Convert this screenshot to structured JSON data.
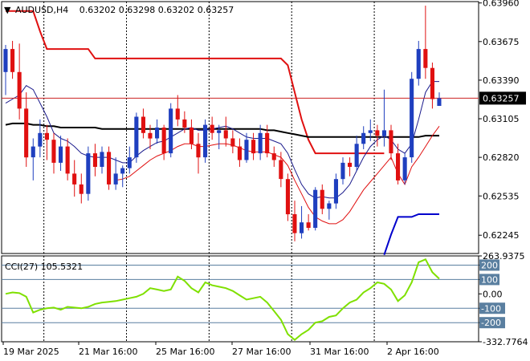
{
  "header": {
    "arrow": "▼",
    "symbol": "AUDUSD,H4",
    "ohlc": "0.63202 0.63298 0.63202 0.63257"
  },
  "colors": {
    "bull": "#1f3fbf",
    "bear": "#e01010",
    "envelope_upper": "#e01010",
    "envelope_lower": "#0000cc",
    "ma_fast": "#1a1a8c",
    "ma_fast_lower": "#e01010",
    "ma_slow": "#000000",
    "cci": "#7fe000",
    "price_line": "#cc2222",
    "level_line": "#5a7fa0",
    "grid": "#000000"
  },
  "chart_data": [
    {
      "type": "candlestick",
      "title": "AUDUSD,H4",
      "y_ticks": [
        "0.63960",
        "0.63675",
        "0.63390",
        "0.63105",
        "0.62820",
        "0.62535",
        "0.62245"
      ],
      "ylim": [
        0.6211,
        0.6397
      ],
      "current_price_label": "0.63257",
      "current_price": 0.63257,
      "x_tick_labels": [
        "19 Mar 2025",
        "21 Mar 16:00",
        "25 Mar 16:00",
        "27 Mar 16:00",
        "31 Mar 16:00",
        "2 Apr 16:00"
      ],
      "candles": [
        [
          0.6345,
          0.6365,
          0.6328,
          0.6362
        ],
        [
          0.6362,
          0.6368,
          0.634,
          0.6345
        ],
        [
          0.6345,
          0.6366,
          0.631,
          0.6318
        ],
        [
          0.6318,
          0.633,
          0.6275,
          0.6282
        ],
        [
          0.6282,
          0.6296,
          0.6265,
          0.629
        ],
        [
          0.629,
          0.631,
          0.6282,
          0.63
        ],
        [
          0.63,
          0.6306,
          0.628,
          0.6295
        ],
        [
          0.6295,
          0.63,
          0.627,
          0.6278
        ],
        [
          0.6278,
          0.6298,
          0.6272,
          0.629
        ],
        [
          0.629,
          0.6296,
          0.6265,
          0.627
        ],
        [
          0.627,
          0.628,
          0.6253,
          0.6262
        ],
        [
          0.6262,
          0.627,
          0.6248,
          0.6255
        ],
        [
          0.6255,
          0.629,
          0.625,
          0.6285
        ],
        [
          0.6285,
          0.6292,
          0.6268,
          0.6275
        ],
        [
          0.6275,
          0.629,
          0.627,
          0.6286
        ],
        [
          0.6286,
          0.629,
          0.6258,
          0.6262
        ],
        [
          0.6262,
          0.6282,
          0.6258,
          0.627
        ],
        [
          0.627,
          0.6276,
          0.626,
          0.6274
        ],
        [
          0.6274,
          0.629,
          0.627,
          0.6282
        ],
        [
          0.6282,
          0.6315,
          0.6278,
          0.6312
        ],
        [
          0.6312,
          0.6318,
          0.6296,
          0.63
        ],
        [
          0.63,
          0.6306,
          0.6288,
          0.6296
        ],
        [
          0.6296,
          0.631,
          0.6292,
          0.6304
        ],
        [
          0.6304,
          0.6306,
          0.628,
          0.6285
        ],
        [
          0.6285,
          0.6322,
          0.6282,
          0.6318
        ],
        [
          0.6318,
          0.6328,
          0.6305,
          0.631
        ],
        [
          0.631,
          0.6316,
          0.63,
          0.6304
        ],
        [
          0.6304,
          0.631,
          0.6288,
          0.6292
        ],
        [
          0.6292,
          0.63,
          0.627,
          0.6282
        ],
        [
          0.6282,
          0.631,
          0.6278,
          0.6306
        ],
        [
          0.6306,
          0.6312,
          0.6295,
          0.63
        ],
        [
          0.63,
          0.6306,
          0.6288,
          0.6302
        ],
        [
          0.6302,
          0.6312,
          0.629,
          0.6296
        ],
        [
          0.6296,
          0.6302,
          0.6285,
          0.629
        ],
        [
          0.629,
          0.6296,
          0.6275,
          0.628
        ],
        [
          0.628,
          0.63,
          0.6278,
          0.6295
        ],
        [
          0.6295,
          0.63,
          0.628,
          0.6285
        ],
        [
          0.6285,
          0.6306,
          0.628,
          0.63
        ],
        [
          0.63,
          0.6306,
          0.6282,
          0.6285
        ],
        [
          0.6285,
          0.629,
          0.6275,
          0.628
        ],
        [
          0.628,
          0.6286,
          0.626,
          0.6266
        ],
        [
          0.6266,
          0.627,
          0.6235,
          0.624
        ],
        [
          0.624,
          0.625,
          0.622,
          0.6226
        ],
        [
          0.6226,
          0.6246,
          0.6222,
          0.6234
        ],
        [
          0.6234,
          0.624,
          0.6228,
          0.623
        ],
        [
          0.623,
          0.626,
          0.6228,
          0.6258
        ],
        [
          0.6258,
          0.6262,
          0.624,
          0.6244
        ],
        [
          0.6244,
          0.625,
          0.6236,
          0.6248
        ],
        [
          0.6248,
          0.627,
          0.6244,
          0.6266
        ],
        [
          0.6266,
          0.6282,
          0.6262,
          0.6278
        ],
        [
          0.6278,
          0.6282,
          0.6268,
          0.6275
        ],
        [
          0.6275,
          0.6298,
          0.6272,
          0.6292
        ],
        [
          0.6292,
          0.6305,
          0.6288,
          0.63
        ],
        [
          0.63,
          0.631,
          0.6294,
          0.6302
        ],
        [
          0.6302,
          0.6306,
          0.629,
          0.6298
        ],
        [
          0.6298,
          0.6332,
          0.629,
          0.6302
        ],
        [
          0.6302,
          0.6306,
          0.628,
          0.6285
        ],
        [
          0.6285,
          0.6292,
          0.6262,
          0.6265
        ],
        [
          0.6265,
          0.6285,
          0.6262,
          0.6282
        ],
        [
          0.6282,
          0.6345,
          0.6278,
          0.634
        ],
        [
          0.634,
          0.6368,
          0.6335,
          0.6362
        ],
        [
          0.6362,
          0.6394,
          0.634,
          0.6348
        ],
        [
          0.6348,
          0.6352,
          0.6318,
          0.6325
        ],
        [
          0.632,
          0.633,
          0.632,
          0.63257
        ]
      ],
      "envelope_upper": [
        0.639,
        0.639,
        0.639,
        0.639,
        0.639,
        0.6375,
        0.6362,
        0.6362,
        0.6362,
        0.6362,
        0.6362,
        0.6362,
        0.6362,
        0.6355,
        0.6355,
        0.6355,
        0.6355,
        0.6355,
        0.6355,
        0.6355,
        0.6355,
        0.6355,
        0.6355,
        0.6355,
        0.6355,
        0.6355,
        0.6355,
        0.6355,
        0.6355,
        0.6355,
        0.6355,
        0.6355,
        0.6355,
        0.6355,
        0.6355,
        0.6355,
        0.6355,
        0.6355,
        0.6355,
        0.6355,
        0.6355,
        0.635,
        0.633,
        0.631,
        0.6295,
        0.6285,
        0.6285,
        0.6285,
        0.6285,
        0.6285,
        0.6285,
        0.6285,
        0.6285,
        0.6285,
        0.6285,
        0.6285,
        null,
        null,
        null,
        null,
        null,
        null,
        null,
        null
      ],
      "envelope_lower": [
        null,
        null,
        null,
        null,
        null,
        null,
        null,
        null,
        null,
        null,
        null,
        null,
        null,
        null,
        null,
        null,
        null,
        null,
        null,
        null,
        null,
        null,
        null,
        null,
        null,
        null,
        null,
        null,
        null,
        null,
        null,
        null,
        null,
        null,
        null,
        null,
        null,
        null,
        null,
        null,
        null,
        null,
        null,
        null,
        null,
        null,
        null,
        null,
        null,
        null,
        null,
        null,
        null,
        null,
        null,
        0.621,
        0.6225,
        0.6238,
        0.6238,
        0.6238,
        0.624,
        0.624,
        0.624,
        0.624
      ],
      "ma_fast": [
        0.6322,
        0.6325,
        0.6328,
        0.6335,
        0.6332,
        0.6322,
        0.6312,
        0.63,
        0.6296,
        0.6294,
        0.629,
        0.6285,
        0.6283,
        0.6282,
        0.6282,
        0.6282,
        0.628,
        0.6278,
        0.6278,
        0.6283,
        0.6287,
        0.629,
        0.6293,
        0.6294,
        0.6297,
        0.63,
        0.6303,
        0.6304,
        0.6302,
        0.6302,
        0.6303,
        0.6304,
        0.6305,
        0.6303,
        0.63,
        0.6297,
        0.6296,
        0.6296,
        0.6296,
        0.6294,
        0.6292,
        0.6285,
        0.6273,
        0.6262,
        0.6255,
        0.6252,
        0.6253,
        0.6252,
        0.6252,
        0.6256,
        0.6262,
        0.6272,
        0.6282,
        0.629,
        0.6295,
        0.6298,
        0.6295,
        0.6288,
        0.6285,
        0.6292,
        0.631,
        0.633,
        0.6338,
        0.6338
      ],
      "ma_fast_lower": [
        null,
        null,
        null,
        null,
        null,
        null,
        null,
        null,
        null,
        null,
        null,
        null,
        null,
        null,
        null,
        null,
        0.6265,
        0.6266,
        0.6268,
        0.6272,
        0.6276,
        0.628,
        0.6283,
        0.6285,
        0.6287,
        0.629,
        0.6292,
        0.6292,
        0.629,
        0.629,
        0.6291,
        0.6292,
        0.6292,
        0.6291,
        0.6289,
        0.6287,
        0.6286,
        0.6286,
        0.6286,
        0.6284,
        0.6282,
        0.6276,
        0.6265,
        0.6255,
        0.6245,
        0.6238,
        0.6235,
        0.6233,
        0.6233,
        0.6236,
        0.6242,
        0.625,
        0.6258,
        0.6264,
        0.627,
        0.6276,
        0.6282,
        0.627,
        0.6262,
        0.6275,
        0.6282,
        0.629,
        0.6298,
        0.6305
      ],
      "ma_slow": [
        0.6306,
        0.6307,
        0.6307,
        0.6307,
        0.6306,
        0.6306,
        0.6305,
        0.6305,
        0.6304,
        0.6304,
        0.6304,
        0.6304,
        0.6304,
        0.6304,
        0.6303,
        0.6303,
        0.6303,
        0.6303,
        0.6303,
        0.6303,
        0.6303,
        0.6303,
        0.6303,
        0.6303,
        0.6303,
        0.6303,
        0.6303,
        0.6303,
        0.6303,
        0.6303,
        0.6303,
        0.6303,
        0.6303,
        0.6303,
        0.6303,
        0.6303,
        0.6303,
        0.6303,
        0.6302,
        0.6302,
        0.6301,
        0.63,
        0.6299,
        0.6298,
        0.6297,
        0.6297,
        0.6297,
        0.6297,
        0.6297,
        0.6297,
        0.6297,
        0.6297,
        0.6297,
        0.6297,
        0.6297,
        0.6297,
        0.6297,
        0.6297,
        0.6297,
        0.6297,
        0.6297,
        0.6298,
        0.6298,
        0.6298
      ]
    },
    {
      "type": "line",
      "title": "CCI(27) 105.5321",
      "series_name": "CCI(27)",
      "y_ticks": [
        "263.9375",
        "200",
        "100",
        "0.00",
        "-100",
        "-200",
        "-332.7764"
      ],
      "ylim": [
        -332.7764,
        263.9375
      ],
      "levels": [
        200,
        100,
        -100,
        -200
      ],
      "values": [
        0,
        10,
        5,
        -20,
        -130,
        -110,
        -100,
        -95,
        -110,
        -90,
        -95,
        -100,
        -90,
        -70,
        -60,
        -55,
        -50,
        -40,
        -30,
        -20,
        0,
        40,
        30,
        20,
        30,
        120,
        90,
        40,
        10,
        80,
        60,
        50,
        40,
        20,
        -10,
        -40,
        -30,
        -20,
        -60,
        -120,
        -180,
        -280,
        -320,
        -280,
        -250,
        -200,
        -190,
        -160,
        -150,
        -100,
        -60,
        -40,
        10,
        40,
        80,
        70,
        30,
        -50,
        -10,
        80,
        220,
        240,
        150,
        105
      ]
    }
  ]
}
